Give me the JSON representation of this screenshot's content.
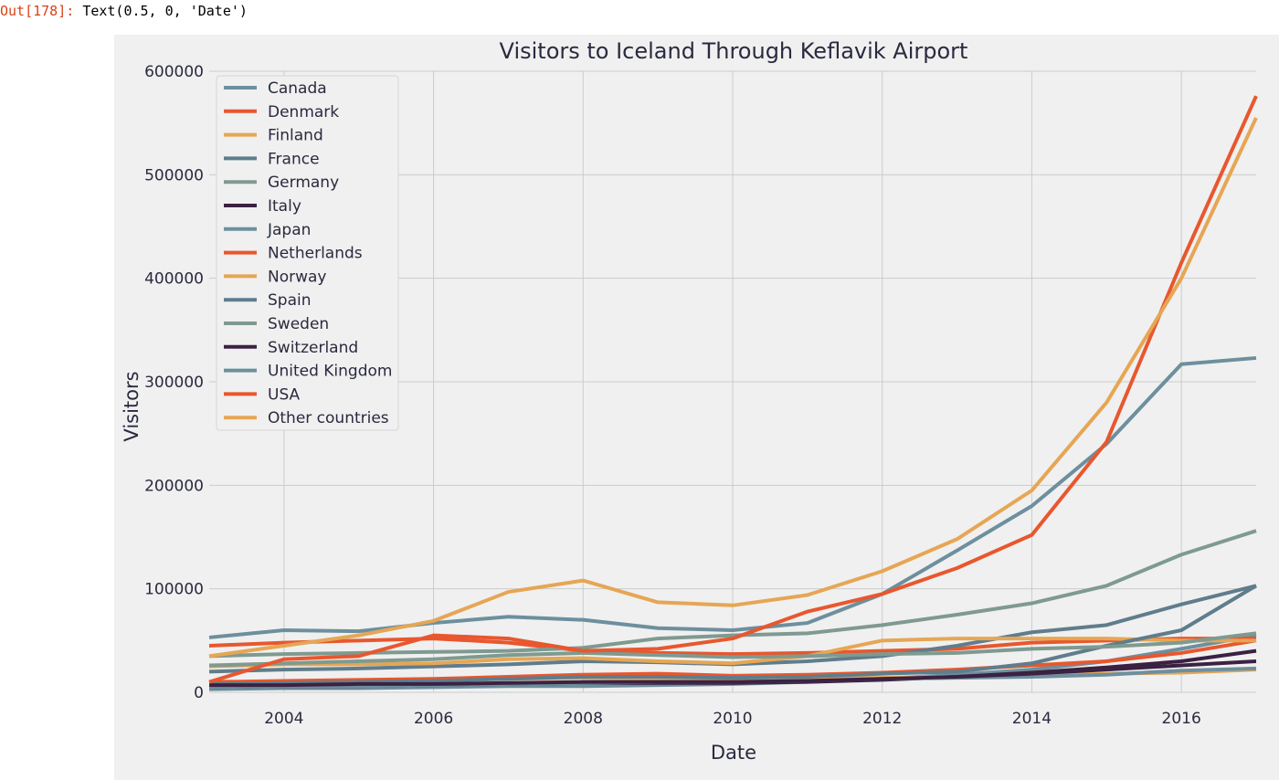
{
  "output": {
    "prompt": "Out[178]:",
    "text": "Text(0.5, 0, 'Date')"
  },
  "chart_data": {
    "type": "line",
    "title": "Visitors to Iceland Through Keflavik Airport",
    "xlabel": "Date",
    "ylabel": "Visitors",
    "xlim": [
      2003,
      2017
    ],
    "ylim": [
      0,
      600000
    ],
    "xticks": [
      2004,
      2006,
      2008,
      2010,
      2012,
      2014,
      2016
    ],
    "yticks": [
      0,
      100000,
      200000,
      300000,
      400000,
      500000,
      600000
    ],
    "grid": true,
    "legend_position": "upper-left",
    "x": [
      2003,
      2004,
      2005,
      2006,
      2007,
      2008,
      2009,
      2010,
      2011,
      2012,
      2013,
      2014,
      2015,
      2016,
      2017
    ],
    "series": [
      {
        "name": "Canada",
        "color": "#6d8f9e",
        "values": [
          3000,
          4000,
          4000,
          5000,
          6000,
          6000,
          7000,
          8000,
          10000,
          13000,
          17000,
          22000,
          30000,
          42000,
          55000
        ]
      },
      {
        "name": "Denmark",
        "color": "#e8572e",
        "values": [
          45000,
          48000,
          50000,
          52000,
          48000,
          40000,
          38000,
          37000,
          38000,
          40000,
          42000,
          48000,
          50000,
          52000,
          52000
        ]
      },
      {
        "name": "Finland",
        "color": "#e6a654",
        "values": [
          10000,
          10000,
          11000,
          12000,
          13000,
          14000,
          13000,
          12000,
          13000,
          14000,
          15000,
          16000,
          18000,
          19000,
          22000
        ]
      },
      {
        "name": "France",
        "color": "#5f7d8c",
        "values": [
          20000,
          22000,
          23000,
          25000,
          27000,
          30000,
          29000,
          27000,
          30000,
          35000,
          45000,
          58000,
          65000,
          85000,
          103000
        ]
      },
      {
        "name": "Germany",
        "color": "#7f9a90",
        "values": [
          35000,
          37000,
          38000,
          39000,
          40000,
          43000,
          52000,
          55000,
          57000,
          65000,
          75000,
          86000,
          103000,
          133000,
          156000
        ]
      },
      {
        "name": "Italy",
        "color": "#3b2142",
        "values": [
          5000,
          6000,
          6000,
          7000,
          8000,
          9000,
          9000,
          9000,
          10000,
          12000,
          15000,
          19000,
          24000,
          30000,
          40000
        ]
      },
      {
        "name": "Japan",
        "color": "#6d8f9e",
        "values": [
          5000,
          6000,
          6000,
          7000,
          8000,
          9000,
          10000,
          10000,
          11000,
          13000,
          14000,
          15000,
          17000,
          21000,
          23000
        ]
      },
      {
        "name": "Netherlands",
        "color": "#e8572e",
        "values": [
          10000,
          11000,
          12000,
          13000,
          15000,
          17000,
          18000,
          16000,
          17000,
          19000,
          22000,
          26000,
          30000,
          38000,
          50000
        ]
      },
      {
        "name": "Norway",
        "color": "#e6a654",
        "values": [
          25000,
          27000,
          27000,
          28000,
          32000,
          33000,
          30000,
          28000,
          35000,
          50000,
          52000,
          52000,
          52000,
          50000,
          50000
        ]
      },
      {
        "name": "Spain",
        "color": "#5f7d8c",
        "values": [
          8000,
          9000,
          10000,
          11000,
          13000,
          15000,
          15000,
          14000,
          15000,
          18000,
          20000,
          28000,
          45000,
          60000,
          103000
        ]
      },
      {
        "name": "Sweden",
        "color": "#7f9a90",
        "values": [
          26000,
          28000,
          30000,
          32000,
          36000,
          38000,
          36000,
          34000,
          35000,
          37000,
          38000,
          42000,
          44000,
          48000,
          57000
        ]
      },
      {
        "name": "Switzerland",
        "color": "#3b2142",
        "values": [
          7000,
          7000,
          8000,
          8000,
          9000,
          10000,
          10000,
          10000,
          11000,
          13000,
          15000,
          18000,
          22000,
          26000,
          30000
        ]
      },
      {
        "name": "United Kingdom",
        "color": "#6d8f9e",
        "values": [
          53000,
          60000,
          59000,
          67000,
          73000,
          70000,
          62000,
          60000,
          67000,
          95000,
          137000,
          180000,
          240000,
          317000,
          323000
        ]
      },
      {
        "name": "USA",
        "color": "#e8572e",
        "values": [
          10000,
          32000,
          35000,
          55000,
          52000,
          40000,
          42000,
          52000,
          78000,
          95000,
          120000,
          152000,
          242000,
          415000,
          576000
        ]
      },
      {
        "name": "Other countries",
        "color": "#e6a654",
        "values": [
          35000,
          45000,
          55000,
          69000,
          97000,
          108000,
          87000,
          84000,
          94000,
          117000,
          148000,
          195000,
          280000,
          400000,
          555000
        ]
      }
    ]
  }
}
